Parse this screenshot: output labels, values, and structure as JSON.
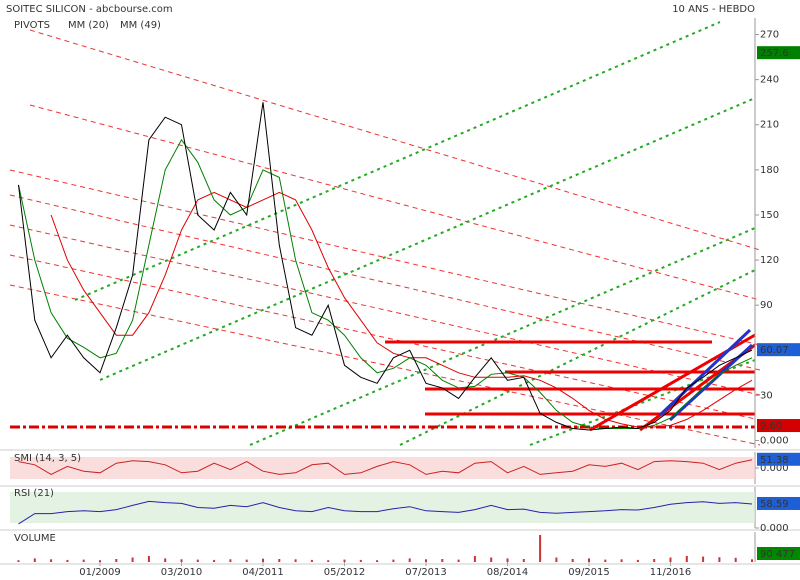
{
  "chart_data": [
    {
      "type": "line",
      "title": "SOITEC SILICON - abcbourse.com",
      "subtitle": "10 ANS - HEBDO",
      "pivots_label": "PIVOTS",
      "categories": [
        null,
        null,
        null,
        null,
        null,
        "01/2009",
        null,
        null,
        null,
        null,
        "03/2010",
        null,
        null,
        null,
        null,
        "04/2011",
        null,
        null,
        null,
        null,
        "05/2012",
        null,
        null,
        null,
        null,
        "07/2013",
        null,
        null,
        null,
        null,
        "08/2014",
        null,
        null,
        null,
        null,
        "09/2015",
        null,
        null,
        null,
        null,
        "11/2016",
        null,
        null,
        null,
        null,
        null
      ],
      "values": [
        170,
        80,
        55,
        70,
        55,
        45,
        75,
        110,
        200,
        215,
        210,
        150,
        140,
        165,
        150,
        225,
        130,
        75,
        70,
        90,
        50,
        42,
        38,
        55,
        60,
        38,
        35,
        28,
        42,
        55,
        40,
        42,
        18,
        12,
        8,
        7,
        8,
        9,
        8,
        12,
        20,
        35,
        42,
        50,
        55,
        60.07
      ],
      "color": "#000000",
      "series": [
        {
          "name": "MM (20)",
          "color": "#008000",
          "values": [
            170,
            120,
            85,
            68,
            62,
            55,
            58,
            80,
            130,
            180,
            200,
            185,
            160,
            150,
            155,
            180,
            175,
            120,
            85,
            80,
            70,
            55,
            45,
            48,
            55,
            50,
            40,
            35,
            36,
            44,
            45,
            42,
            32,
            20,
            12,
            9,
            8,
            8,
            8,
            10,
            15,
            25,
            35,
            44,
            50,
            55
          ]
        },
        {
          "name": "MM (49)",
          "color": "#e00000",
          "values": [
            null,
            null,
            150,
            120,
            100,
            85,
            70,
            70,
            85,
            110,
            140,
            160,
            165,
            160,
            155,
            160,
            165,
            160,
            140,
            115,
            95,
            80,
            65,
            58,
            55,
            55,
            50,
            45,
            42,
            42,
            42,
            43,
            40,
            35,
            28,
            20,
            14,
            11,
            9,
            9,
            10,
            14,
            20,
            27,
            34,
            40
          ]
        }
      ],
      "ylim": [
        -5,
        281
      ],
      "yticks": [
        {
          "value": 0,
          "label": "0.000"
        },
        30,
        90,
        120,
        150,
        180,
        210,
        240,
        270
      ],
      "price_tags": [
        {
          "value": 257.6,
          "label": "257.6",
          "color": "#008000"
        },
        {
          "value": 60.07,
          "label": "60.07",
          "color": "#1f5fd6"
        },
        {
          "value": 9.6,
          "label": "9.60",
          "color": "#d40000"
        }
      ]
    },
    {
      "type": "line",
      "title": "SMI (14, 3, 5)",
      "band_color": "#f8d0d0",
      "color": "#cc2222",
      "values": [
        40,
        20,
        -40,
        10,
        -20,
        -30,
        30,
        45,
        40,
        20,
        -30,
        -20,
        30,
        -10,
        40,
        -20,
        -40,
        -30,
        20,
        30,
        -40,
        -30,
        10,
        40,
        20,
        -40,
        -20,
        -30,
        30,
        40,
        -30,
        10,
        -40,
        -30,
        -20,
        20,
        10,
        30,
        -10,
        40,
        45,
        40,
        30,
        -10,
        30,
        51.38
      ],
      "ylim": [
        -100,
        100
      ],
      "yticks": [
        {
          "value": 0,
          "label": "0.000"
        }
      ],
      "last_label": "51.38"
    },
    {
      "type": "line",
      "title": "RSI (21)",
      "band_color": "#d8ecd8",
      "color": "#2222aa",
      "values": [
        10,
        35,
        35,
        40,
        42,
        40,
        45,
        55,
        65,
        62,
        60,
        50,
        48,
        55,
        52,
        62,
        50,
        42,
        40,
        50,
        42,
        40,
        40,
        47,
        52,
        42,
        40,
        38,
        45,
        55,
        45,
        46,
        38,
        36,
        38,
        40,
        42,
        45,
        44,
        50,
        58,
        62,
        64,
        60,
        62,
        58.59
      ],
      "ylim": [
        0,
        100
      ],
      "yticks": [
        {
          "value": 0,
          "label": "0.000"
        }
      ],
      "last_label": "58.59"
    },
    {
      "type": "bar",
      "title": "VOLUME",
      "color": "#cc3333",
      "values": [
        60000,
        120000,
        90000,
        70000,
        80000,
        60000,
        100000,
        150000,
        200000,
        120000,
        90000,
        80000,
        70000,
        90000,
        80000,
        110000,
        100000,
        90000,
        70000,
        60000,
        80000,
        70000,
        60000,
        80000,
        120000,
        90000,
        100000,
        80000,
        200000,
        150000,
        120000,
        100000,
        900000,
        150000,
        100000,
        120000,
        80000,
        90000,
        70000,
        100000,
        150000,
        200000,
        180000,
        160000,
        140000,
        90477
      ],
      "ylim": [
        0,
        1000000
      ],
      "last_label": "90 477"
    }
  ]
}
